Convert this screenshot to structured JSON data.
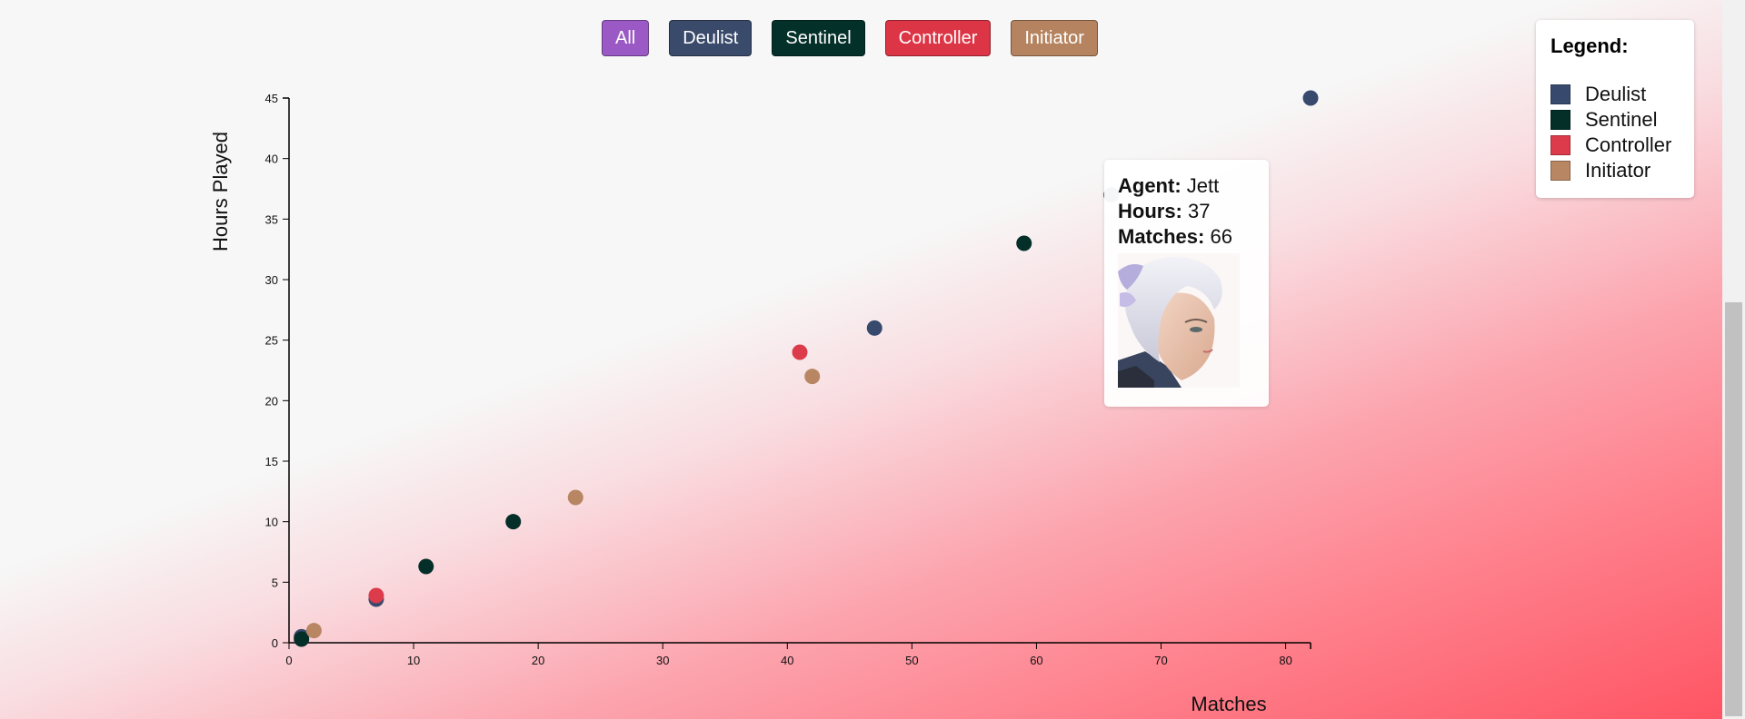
{
  "filters": [
    {
      "label": "All",
      "color": "#9b59c6"
    },
    {
      "label": "Deulist",
      "color": "#3a4a6b"
    },
    {
      "label": "Sentinel",
      "color": "#04302a"
    },
    {
      "label": "Controller",
      "color": "#dc3545"
    },
    {
      "label": "Initiator",
      "color": "#b5835f"
    }
  ],
  "legend": {
    "title": "Legend:",
    "items": [
      {
        "label": "Deulist",
        "color": "#374a6d"
      },
      {
        "label": "Sentinel",
        "color": "#042e28"
      },
      {
        "label": "Controller",
        "color": "#dc3b4b"
      },
      {
        "label": "Initiator",
        "color": "#b88663"
      }
    ]
  },
  "tooltip": {
    "agent_label": "Agent:",
    "agent_value": "Jett",
    "hours_label": "Hours:",
    "hours_value": "37",
    "matches_label": "Matches:",
    "matches_value": "66"
  },
  "chart_data": {
    "type": "scatter",
    "xlabel": "Matches",
    "ylabel": "Hours Played",
    "xlim": [
      0,
      82
    ],
    "ylim": [
      0,
      45
    ],
    "xticks": [
      0,
      10,
      20,
      30,
      40,
      50,
      60,
      70,
      80
    ],
    "yticks": [
      0,
      5,
      10,
      15,
      20,
      25,
      30,
      35,
      40,
      45
    ],
    "grid": false,
    "legend_position": "top-right",
    "series": [
      {
        "name": "Deulist",
        "color": "#374a6d",
        "points": [
          {
            "x": 82,
            "y": 45
          },
          {
            "x": 47,
            "y": 26
          },
          {
            "x": 66,
            "y": 37
          },
          {
            "x": 7,
            "y": 3.6
          },
          {
            "x": 1,
            "y": 0.5
          }
        ]
      },
      {
        "name": "Sentinel",
        "color": "#042e28",
        "points": [
          {
            "x": 59,
            "y": 33
          },
          {
            "x": 18,
            "y": 10
          },
          {
            "x": 11,
            "y": 6.3
          },
          {
            "x": 1,
            "y": 0.3
          }
        ]
      },
      {
        "name": "Controller",
        "color": "#dc3b4b",
        "points": [
          {
            "x": 41,
            "y": 24
          },
          {
            "x": 7,
            "y": 3.9
          }
        ]
      },
      {
        "name": "Initiator",
        "color": "#b88663",
        "points": [
          {
            "x": 42,
            "y": 22
          },
          {
            "x": 23,
            "y": 12
          },
          {
            "x": 2,
            "y": 1
          }
        ]
      }
    ]
  }
}
